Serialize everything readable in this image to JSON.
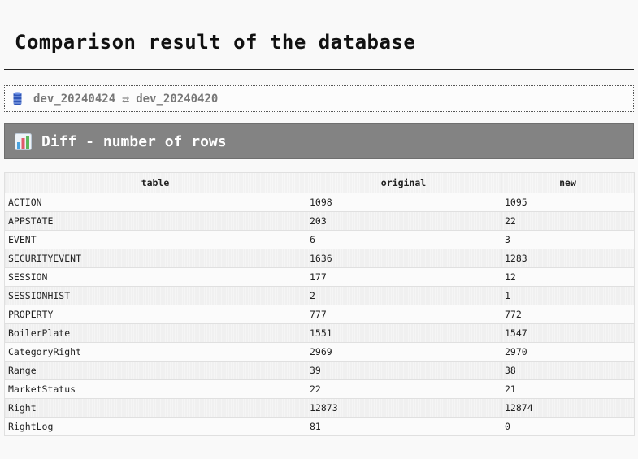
{
  "page": {
    "title": "Comparison result of the database"
  },
  "comparison": {
    "icon": "database-icon",
    "left_db": "dev_20240424",
    "swap_icon": "⇄",
    "right_db": "dev_20240420"
  },
  "section": {
    "icon": "bar-chart-icon",
    "title": "Diff - number of rows"
  },
  "table": {
    "headers": [
      "table",
      "original",
      "new"
    ],
    "rows": [
      [
        "ACTION",
        "1098",
        "1095"
      ],
      [
        "APPSTATE",
        "203",
        "22"
      ],
      [
        "EVENT",
        "6",
        "3"
      ],
      [
        "SECURITYEVENT",
        "1636",
        "1283"
      ],
      [
        "SESSION",
        "177",
        "12"
      ],
      [
        "SESSIONHIST",
        "2",
        "1"
      ],
      [
        "PROPERTY",
        "777",
        "772"
      ],
      [
        "BoilerPlate",
        "1551",
        "1547"
      ],
      [
        "CategoryRight",
        "2969",
        "2970"
      ],
      [
        "Range",
        "39",
        "38"
      ],
      [
        "MarketStatus",
        "22",
        "21"
      ],
      [
        "Right",
        "12873",
        "12874"
      ],
      [
        "RightLog",
        "81",
        "0"
      ]
    ]
  },
  "colors": {
    "section_header_bg": "#838383",
    "db_icon": "#2f56b8",
    "text": "#222222"
  }
}
